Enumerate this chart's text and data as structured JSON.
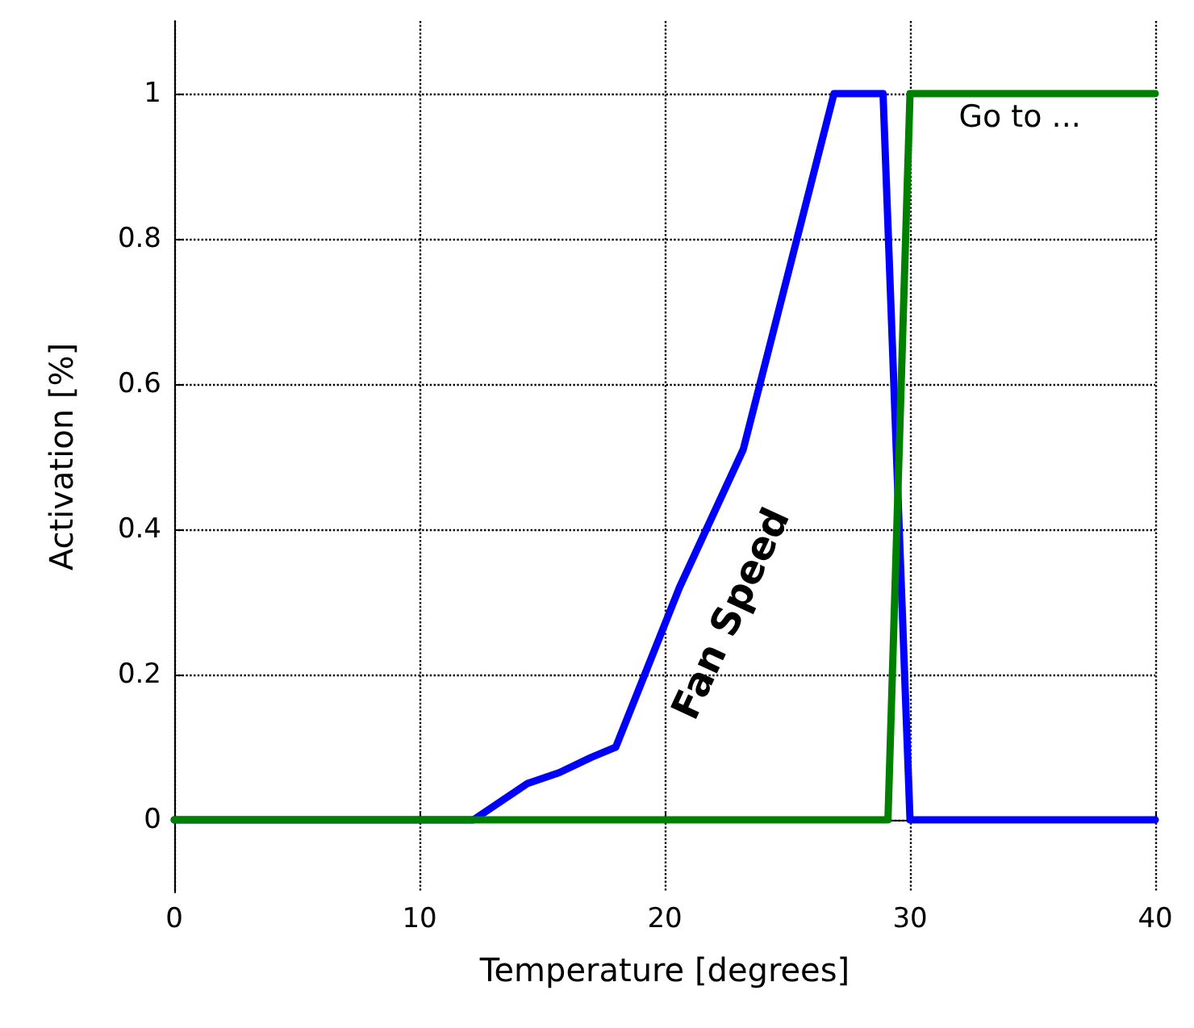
{
  "chart_data": {
    "type": "line",
    "xlabel": "Temperature [degrees]",
    "ylabel": "Activation [%]",
    "xlim": [
      0,
      40
    ],
    "xticks": [
      0,
      10,
      20,
      30,
      40
    ],
    "ylim": [
      -0.1,
      1.1
    ],
    "yticks": [
      0,
      0.2,
      0.4,
      0.6,
      0.8,
      1
    ],
    "grid": true,
    "marker": "none",
    "line_style": "solid",
    "series": [
      {
        "name": "Fan Speed",
        "color": "#0000ff",
        "x": [
          0,
          12.2,
          14.4,
          15.7,
          17,
          18,
          19.3,
          20.6,
          23.2,
          26.9,
          28.9,
          30,
          40
        ],
        "values": [
          0,
          0,
          0.05,
          0.065,
          0.086,
          0.1,
          0.21,
          0.32,
          0.51,
          1,
          1,
          0,
          0
        ]
      },
      {
        "name": "Go to ...",
        "color": "#008000",
        "x": [
          0,
          29.1,
          30,
          40
        ],
        "values": [
          0,
          0,
          1,
          1
        ]
      }
    ]
  }
}
